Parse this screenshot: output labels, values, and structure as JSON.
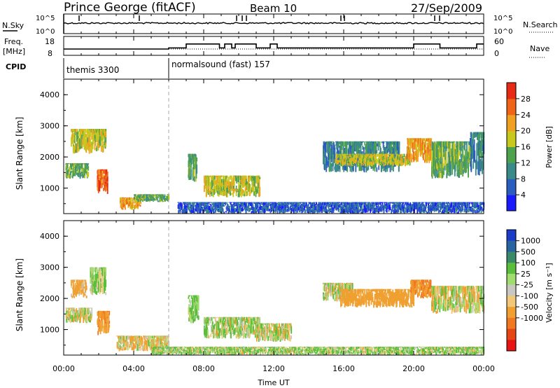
{
  "header": {
    "station": "Prince George (fitACF)",
    "beam": "Beam 10",
    "date": "27/Sep/2009"
  },
  "noise_panel": {
    "left_label": "N.Sky",
    "right_label": "N.Search",
    "tick_top": "10^5",
    "tick_bottom": "10^0"
  },
  "freq_panel": {
    "left_label_1": "Freq.",
    "left_label_2": "[MHz]",
    "right_label": "Nave",
    "left_ticks": [
      "18",
      "8"
    ],
    "right_ticks": [
      "60",
      "0"
    ]
  },
  "cpid_panel": {
    "label": "CPID",
    "programs": [
      {
        "name": "themis 3300",
        "start_hour": 0
      },
      {
        "name": "normalsound (fast) 157",
        "start_hour": 6
      }
    ]
  },
  "power_panel": {
    "ylabel": "Slant Range [km]",
    "yticks": [
      1000,
      2000,
      3000,
      4000
    ],
    "colorbar_label": "Power [dB]",
    "colorbar_ticks": [
      "4",
      "8",
      "12",
      "16",
      "20",
      "24",
      "28"
    ],
    "colorbar_colors": [
      "#1a1aff",
      "#2a5dbe",
      "#3a8a8a",
      "#4ea24e",
      "#c8c81e",
      "#f0a020",
      "#f06418",
      "#e62a14"
    ]
  },
  "velocity_panel": {
    "ylabel": "Slant Range [km]",
    "yticks": [
      1000,
      2000,
      3000,
      4000
    ],
    "colorbar_label": "Velocity [m s⁻¹]",
    "colorbar_ticks": [
      "1000",
      "500",
      "100",
      "25",
      "-25",
      "-100",
      "-500",
      "-1000"
    ],
    "colorbar_colors": [
      "#1a3cc8",
      "#2a64a0",
      "#3a8a6a",
      "#5abe3c",
      "#a0dc6e",
      "#c8c8c0",
      "#f0c878",
      "#f0a030",
      "#f07820",
      "#e64614",
      "#e61414"
    ]
  },
  "xaxis": {
    "label": "Time UT",
    "ticks": [
      "00:00",
      "04:00",
      "08:00",
      "12:00",
      "16:00",
      "20:00",
      "00:00"
    ]
  },
  "chart_data": {
    "type": "heatmap",
    "title": "Prince George (fitACF) Beam 10 27/Sep/2009",
    "xlabel": "Time UT",
    "ylabel": "Slant Range [km]",
    "xlim_hours": [
      0,
      24
    ],
    "ylim_km": [
      180,
      4500
    ],
    "frequency_MHz_steps": [
      {
        "start_hour": 0,
        "end_hour": 6.0,
        "value": 10.5
      },
      {
        "start_hour": 6.0,
        "end_hour": 7.0,
        "value": 11.5
      },
      {
        "start_hour": 7.0,
        "end_hour": 8.9,
        "value": 15.0
      },
      {
        "start_hour": 8.9,
        "end_hour": 9.2,
        "value": 11.5
      },
      {
        "start_hour": 9.2,
        "end_hour": 9.6,
        "value": 15.0
      },
      {
        "start_hour": 9.6,
        "end_hour": 9.8,
        "value": 11.5
      },
      {
        "start_hour": 9.8,
        "end_hour": 11.0,
        "value": 15.0
      },
      {
        "start_hour": 11.0,
        "end_hour": 11.8,
        "value": 11.5
      },
      {
        "start_hour": 11.8,
        "end_hour": 12.2,
        "value": 15.0
      },
      {
        "start_hour": 12.2,
        "end_hour": 20.0,
        "value": 11.5
      },
      {
        "start_hour": 20.0,
        "end_hour": 21.5,
        "value": 15.0
      },
      {
        "start_hour": 21.5,
        "end_hour": 23.6,
        "value": 11.5
      },
      {
        "start_hour": 23.6,
        "end_hour": 24.0,
        "value": 15.0
      }
    ],
    "power_series": [
      {
        "name": "Power",
        "regions": [
          {
            "t0": 0.1,
            "t1": 1.4,
            "r0": 1300,
            "r1": 1800,
            "level": 12
          },
          {
            "t0": 0.4,
            "t1": 2.4,
            "r0": 2100,
            "r1": 2900,
            "level": 16
          },
          {
            "t0": 1.9,
            "t1": 2.5,
            "r0": 800,
            "r1": 1600,
            "level": 24
          },
          {
            "t0": 3.2,
            "t1": 4.4,
            "r0": 300,
            "r1": 700,
            "level": 20
          },
          {
            "t0": 4.0,
            "t1": 6.0,
            "r0": 550,
            "r1": 800,
            "level": 12
          },
          {
            "t0": 7.1,
            "t1": 7.6,
            "r0": 1200,
            "r1": 2100,
            "level": 12
          },
          {
            "t0": 8.0,
            "t1": 11.2,
            "r0": 700,
            "r1": 1400,
            "level": 16
          },
          {
            "t0": 6.5,
            "t1": 24.0,
            "r0": 180,
            "r1": 550,
            "level": 4
          },
          {
            "t0": 14.8,
            "t1": 19.2,
            "r0": 1500,
            "r1": 2500,
            "level": 8
          },
          {
            "t0": 15.5,
            "t1": 19.8,
            "r0": 1700,
            "r1": 2100,
            "level": 16
          },
          {
            "t0": 19.6,
            "t1": 21.0,
            "r0": 1800,
            "r1": 2600,
            "level": 20
          },
          {
            "t0": 21.0,
            "t1": 23.2,
            "r0": 1300,
            "r1": 2500,
            "level": 12
          },
          {
            "t0": 23.2,
            "t1": 24.0,
            "r0": 1400,
            "r1": 2800,
            "level": 8
          }
        ]
      }
    ],
    "velocity_series": [
      {
        "name": "Velocity",
        "regions": [
          {
            "t0": 0.1,
            "t1": 1.6,
            "r0": 1200,
            "r1": 1700,
            "vel": 0
          },
          {
            "t0": 0.4,
            "t1": 1.3,
            "r0": 2000,
            "r1": 2600,
            "vel": -200
          },
          {
            "t0": 1.5,
            "t1": 2.4,
            "r0": 2100,
            "r1": 3000,
            "vel": 100
          },
          {
            "t0": 1.9,
            "t1": 2.6,
            "r0": 800,
            "r1": 1600,
            "vel": -400
          },
          {
            "t0": 3.0,
            "t1": 6.0,
            "r0": 300,
            "r1": 800,
            "vel": -80
          },
          {
            "t0": 7.1,
            "t1": 7.7,
            "r0": 1200,
            "r1": 2100,
            "vel": 150
          },
          {
            "t0": 8.0,
            "t1": 11.2,
            "r0": 700,
            "r1": 1400,
            "vel": 60
          },
          {
            "t0": 5.0,
            "t1": 24.0,
            "r0": 180,
            "r1": 450,
            "vel": 80
          },
          {
            "t0": 11.0,
            "t1": 13.0,
            "r0": 600,
            "r1": 1200,
            "vel": 0
          },
          {
            "t0": 14.8,
            "t1": 16.5,
            "r0": 1900,
            "r1": 2500,
            "vel": 0
          },
          {
            "t0": 15.8,
            "t1": 20.0,
            "r0": 1700,
            "r1": 2300,
            "vel": -300
          },
          {
            "t0": 19.8,
            "t1": 21.0,
            "r0": 2000,
            "r1": 2600,
            "vel": -500
          },
          {
            "t0": 21.0,
            "t1": 24.0,
            "r0": 1500,
            "r1": 2400,
            "vel": 0
          }
        ]
      }
    ]
  }
}
